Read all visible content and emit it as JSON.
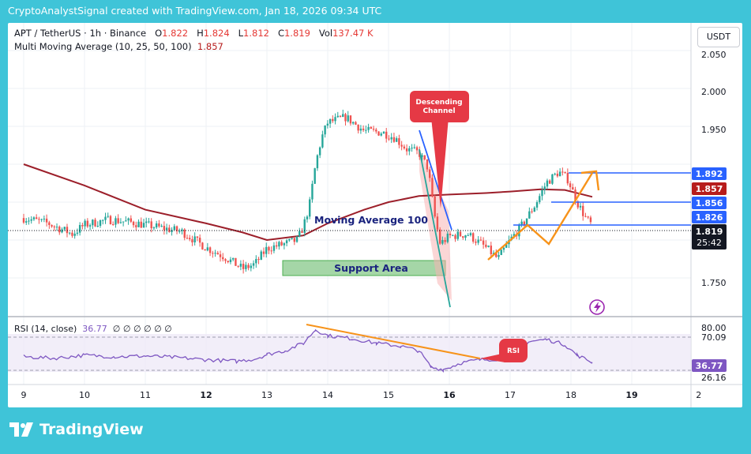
{
  "watermark": "CryptoAnalystSignal created with TradingView.com, Jan 18, 2026 09:34 UTC",
  "legend": {
    "symbol": "APT / TetherUS · 1h · Binance",
    "open_label": "O",
    "open": "1.822",
    "high_label": "H",
    "high": "1.824",
    "low_label": "L",
    "low": "1.812",
    "close_label": "C",
    "close": "1.819",
    "vol_label": "Vol",
    "vol": "137.47 K",
    "ma_label": "Multi Moving Average (10, 25, 50, 100)",
    "ma_value": "1.857"
  },
  "currency_button": "USDT",
  "price_axis": [
    "2.050",
    "2.000",
    "1.950",
    "1.900",
    "1.750"
  ],
  "price_tags": [
    {
      "value": "1.892",
      "color": "#2962ff"
    },
    {
      "value": "1.857",
      "color": "#b71c1c"
    },
    {
      "value": "1.856",
      "color": "#2962ff"
    },
    {
      "value": "1.826",
      "color": "#2962ff"
    },
    {
      "value": "1.819",
      "color": "#131722"
    }
  ],
  "countdown": "25:42",
  "annotations": {
    "descending_channel": [
      "Descending",
      "Channel"
    ],
    "moving_average": "Moving Average 100",
    "support_area": "Support Area",
    "rsi_note": "RSI"
  },
  "rsi": {
    "legend": "RSI (14, close)",
    "value": "36.77",
    "placeholders": "∅ ∅ ∅ ∅ ∅ ∅",
    "axis": [
      "80.00",
      "70.09",
      "26.16"
    ],
    "tag": "36.77"
  },
  "time_axis": [
    "9",
    "10",
    "11",
    "12",
    "13",
    "14",
    "15",
    "16",
    "17",
    "18",
    "19",
    "2"
  ],
  "footer": "TradingView",
  "colors": {
    "bull": "#26a69a",
    "bear": "#ef5350",
    "ma100": "#9c1f2a",
    "rsi": "#7e57c2",
    "accent_blue": "#2962ff",
    "orange": "#f7931a",
    "background": "#3fc4d8"
  },
  "chart_data": {
    "type": "candlestick",
    "symbol": "APT/USDT",
    "timeframe": "1h",
    "price_range": [
      1.72,
      2.07
    ],
    "rsi_range": [
      18,
      84
    ],
    "close_path": [
      [
        9.0,
        1.829
      ],
      [
        9.4,
        1.822
      ],
      [
        9.8,
        1.808
      ],
      [
        10.0,
        1.82
      ],
      [
        10.4,
        1.827
      ],
      [
        10.8,
        1.823
      ],
      [
        11.2,
        1.817
      ],
      [
        11.6,
        1.811
      ],
      [
        12.0,
        1.79
      ],
      [
        12.3,
        1.778
      ],
      [
        12.6,
        1.762
      ],
      [
        12.8,
        1.768
      ],
      [
        13.0,
        1.789
      ],
      [
        13.3,
        1.795
      ],
      [
        13.5,
        1.8
      ],
      [
        13.6,
        1.818
      ],
      [
        13.7,
        1.846
      ],
      [
        13.8,
        1.9
      ],
      [
        13.9,
        1.935
      ],
      [
        14.0,
        1.955
      ],
      [
        14.3,
        1.962
      ],
      [
        14.6,
        1.944
      ],
      [
        14.9,
        1.942
      ],
      [
        15.1,
        1.935
      ],
      [
        15.3,
        1.92
      ],
      [
        15.5,
        1.915
      ],
      [
        15.65,
        1.895
      ],
      [
        15.75,
        1.835
      ],
      [
        15.85,
        1.795
      ],
      [
        16.0,
        1.805
      ],
      [
        16.3,
        1.808
      ],
      [
        16.6,
        1.79
      ],
      [
        16.8,
        1.775
      ],
      [
        17.0,
        1.8
      ],
      [
        17.2,
        1.82
      ],
      [
        17.4,
        1.845
      ],
      [
        17.6,
        1.876
      ],
      [
        17.8,
        1.89
      ],
      [
        17.95,
        1.88
      ],
      [
        18.1,
        1.85
      ],
      [
        18.25,
        1.828
      ],
      [
        18.35,
        1.819
      ]
    ],
    "moving_average_100": [
      [
        9.0,
        1.9
      ],
      [
        10.0,
        1.872
      ],
      [
        11.0,
        1.84
      ],
      [
        12.0,
        1.822
      ],
      [
        12.6,
        1.81
      ],
      [
        13.0,
        1.8
      ],
      [
        13.6,
        1.806
      ],
      [
        14.0,
        1.822
      ],
      [
        14.6,
        1.84
      ],
      [
        15.0,
        1.85
      ],
      [
        15.5,
        1.858
      ],
      [
        16.0,
        1.86
      ],
      [
        16.6,
        1.862
      ],
      [
        17.0,
        1.864
      ],
      [
        17.5,
        1.867
      ],
      [
        17.9,
        1.866
      ],
      [
        18.35,
        1.857
      ]
    ],
    "rsi_series": [
      [
        9.0,
        44
      ],
      [
        9.5,
        42
      ],
      [
        10.0,
        46
      ],
      [
        10.5,
        44
      ],
      [
        11.0,
        45
      ],
      [
        11.5,
        43
      ],
      [
        12.0,
        40
      ],
      [
        12.5,
        38
      ],
      [
        12.8,
        41
      ],
      [
        13.0,
        47
      ],
      [
        13.3,
        52
      ],
      [
        13.6,
        62
      ],
      [
        13.8,
        80
      ],
      [
        14.0,
        72
      ],
      [
        14.4,
        68
      ],
      [
        14.8,
        62
      ],
      [
        15.2,
        58
      ],
      [
        15.5,
        52
      ],
      [
        15.7,
        30
      ],
      [
        15.9,
        27
      ],
      [
        16.2,
        36
      ],
      [
        16.5,
        40
      ],
      [
        16.8,
        41
      ],
      [
        17.0,
        52
      ],
      [
        17.3,
        64
      ],
      [
        17.6,
        67
      ],
      [
        17.9,
        60
      ],
      [
        18.1,
        46
      ],
      [
        18.35,
        36.77
      ]
    ],
    "horizontal_levels": [
      1.892,
      1.856,
      1.826
    ],
    "support_area": [
      1.772,
      1.785
    ]
  }
}
